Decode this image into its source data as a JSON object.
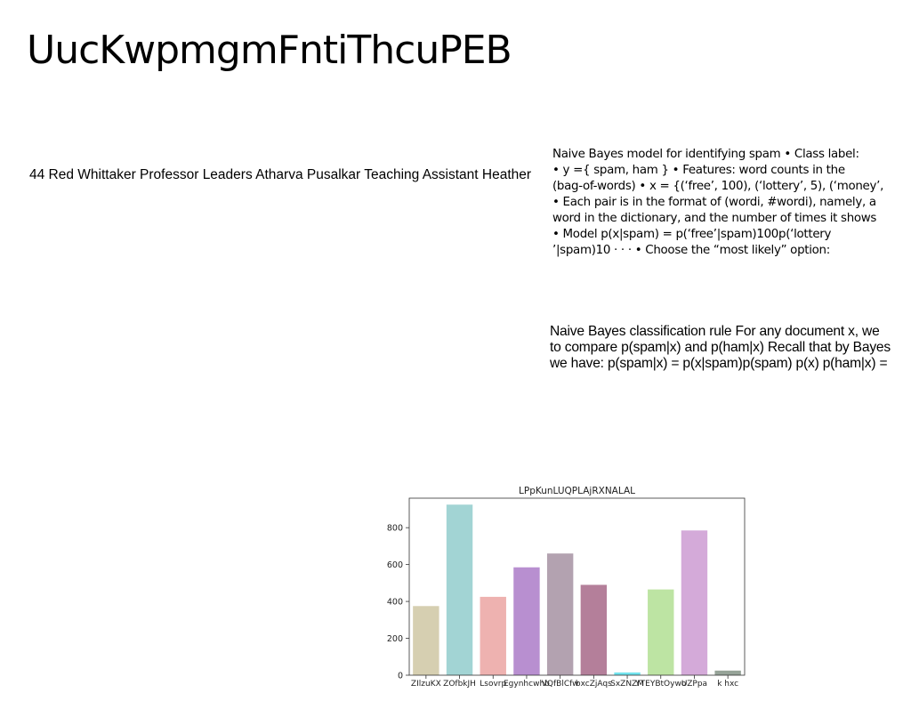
{
  "slide": {
    "title": "UucKwpmgmFntiThcuPEB",
    "subline": "44 Red Whittaker Professor Leaders Atharva Pusalkar Teaching Assistant Heather",
    "block1_lines": [
      "Naive Bayes model for identifying spam • Class label:",
      "• y ={ spam, ham } • Features: word counts in the",
      "(bag-of-words) • x = {(‘free’, 100), (‘lottery’, 5), (‘money’,",
      "• Each pair is in the format of (wordi, #wordi), namely, a",
      "word in the dictionary, and the number of times it shows",
      "• Model p(x|spam) = p(‘free’|spam)100p(‘lottery",
      "’|spam)10 · · · • Choose the “most likely” option:"
    ],
    "block2_lines": [
      "Naive Bayes classification rule For any document x, we",
      "to compare p(spam|x) and p(ham|x) Recall that by Bayes",
      "we have: p(spam|x) = p(x|spam)p(spam) p(x) p(ham|x) ="
    ]
  },
  "chart_data": {
    "type": "bar",
    "title": "LPpKunLUQPLAjRXNALAL",
    "categories": [
      "ZIlzuKX",
      "ZOfbkJH",
      "Lsovrp",
      "Egynhcwhb",
      "VQfBlCfw",
      "bxcZjAqs",
      "SxZNZM",
      "YTEYBtOywo",
      "UZPpa",
      "k hxc"
    ],
    "values": [
      375,
      925,
      425,
      585,
      660,
      490,
      15,
      465,
      785,
      25
    ],
    "colors": [
      "#d6cfb1",
      "#a2d4d4",
      "#eeb2b0",
      "#b88fd0",
      "#b3a2b0",
      "#b47f9a",
      "#72e4ee",
      "#bde4a3",
      "#d4aad9",
      "#96a398"
    ],
    "ylim": [
      0,
      960
    ],
    "yticks": [
      0,
      200,
      400,
      600,
      800
    ],
    "xlabel": "",
    "ylabel": "",
    "grid": false
  }
}
